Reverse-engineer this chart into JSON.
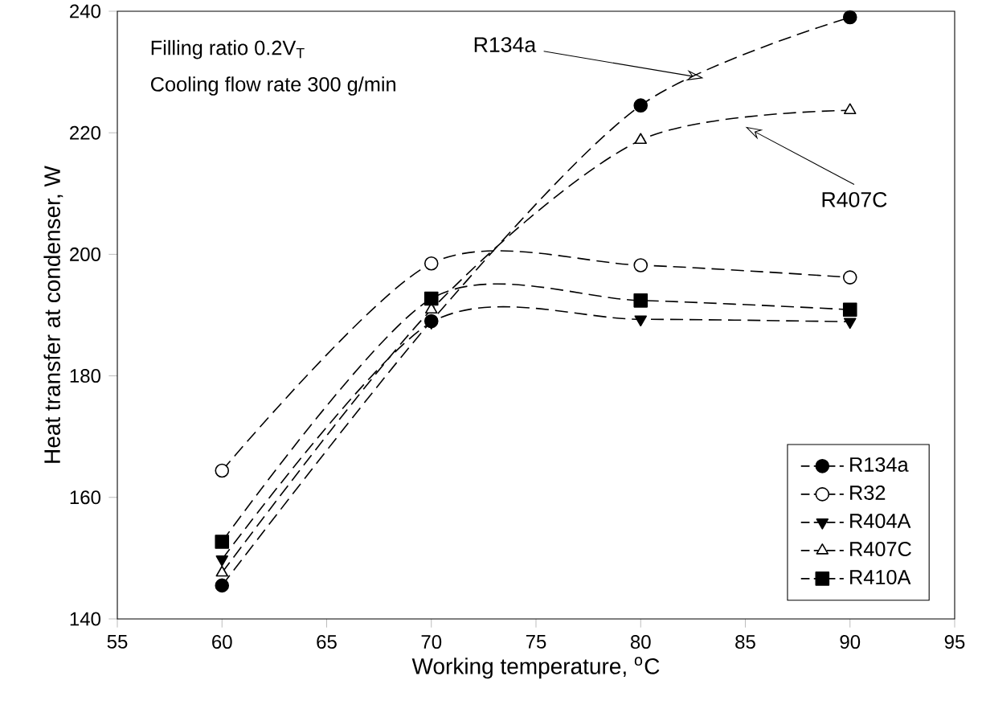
{
  "chart_data": {
    "type": "line",
    "xlabel": "Working temperature, $^{o}$C",
    "ylabel": "Heat transfer at condenser, W",
    "x": [
      60,
      70,
      80,
      90
    ],
    "series": [
      {
        "name": "R134a",
        "color": "#000000",
        "marker": "circle",
        "values": [
          145.5,
          189,
          224.5,
          239
        ]
      },
      {
        "name": "R32",
        "color": "#000000",
        "marker": "circle open",
        "values": [
          164.4,
          198.5,
          198.2,
          196.2
        ]
      },
      {
        "name": "R404A",
        "color": "#000000",
        "marker": "triangle down",
        "values": [
          149.8,
          188.8,
          189.3,
          188.9
        ]
      },
      {
        "name": "R407C",
        "color": "#000000",
        "marker": "triangle open",
        "values": [
          147.6,
          190.9,
          218.8,
          223.7
        ]
      },
      {
        "name": "R410A",
        "color": "#000000",
        "marker": "square",
        "values": [
          152.7,
          192.7,
          192.4,
          190.9
        ]
      }
    ],
    "annotations": [
      "Filling ratio 0.2V$_{T}$",
      "Cooling flow rate 300 g/min",
      {
        "text": "R134a",
        "x": 83,
        "y": 229
      },
      "R407C"
    ],
    "xlim": [
      55,
      95
    ],
    "ylim": [
      140,
      240
    ],
    "xticks": [
      55,
      60,
      65,
      70,
      75,
      80,
      85,
      90,
      95
    ],
    "yticks": [
      140,
      160,
      180,
      200,
      220,
      240
    ],
    "grid": false,
    "legend": "bottom right",
    "line_style": "dashed"
  }
}
